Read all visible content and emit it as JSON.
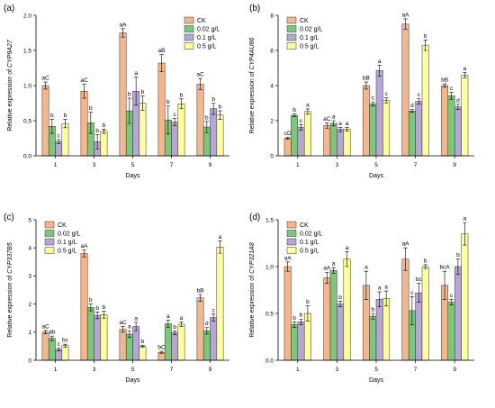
{
  "colors": {
    "CK": "#f7b58a",
    "0.02 g/L": "#7ac97a",
    "0.1 g/L": "#b6a6d8",
    "0.5 g/L": "#ffff99",
    "edge": "#333333"
  },
  "chart_data": [
    {
      "panel": "(a)",
      "type": "bar",
      "categories": [
        "1",
        "3",
        "5",
        "7",
        "9"
      ],
      "xlabel": "Days",
      "ylabel": "Relative expression of CYP9A27",
      "ylim": [
        0,
        2.0
      ],
      "yticks": [
        "0.0",
        "0.5",
        "1.0",
        "1.5",
        "2.0"
      ],
      "legend_position": "top-right",
      "series": [
        {
          "name": "CK",
          "values": [
            1.0,
            0.92,
            1.75,
            1.32,
            1.02
          ],
          "errors": [
            0.05,
            0.1,
            0.06,
            0.12,
            0.08
          ],
          "labels": [
            "aC",
            "aC",
            "aA",
            "aB",
            "aC"
          ]
        },
        {
          "name": "0.02 g/L",
          "values": [
            0.42,
            0.47,
            0.64,
            0.51,
            0.41
          ],
          "errors": [
            0.1,
            0.15,
            0.18,
            0.2,
            0.08
          ],
          "labels": [
            "b",
            "b",
            "b",
            "b",
            "b"
          ]
        },
        {
          "name": "0.1 g/L",
          "values": [
            0.2,
            0.2,
            0.92,
            0.48,
            0.67
          ],
          "errors": [
            0.03,
            0.1,
            0.2,
            0.05,
            0.08
          ],
          "labels": [
            "c",
            "b",
            "a",
            "c",
            "b"
          ]
        },
        {
          "name": "0.5 g/L",
          "values": [
            0.46,
            0.35,
            0.75,
            0.74,
            0.58
          ],
          "errors": [
            0.06,
            0.03,
            0.1,
            0.07,
            0.06
          ],
          "labels": [
            "b",
            "b",
            "b",
            "b",
            "b"
          ]
        }
      ]
    },
    {
      "panel": "(b)",
      "type": "bar",
      "categories": [
        "1",
        "3",
        "5",
        "7",
        "9"
      ],
      "xlabel": "Days",
      "ylabel": "Relative expression of CYP4AU86",
      "ylim": [
        0,
        8
      ],
      "yticks": [
        "0",
        "2",
        "4",
        "6",
        "8"
      ],
      "legend_position": "top-left",
      "series": [
        {
          "name": "CK",
          "values": [
            1.0,
            1.72,
            4.0,
            7.5,
            4.0
          ],
          "errors": [
            0.05,
            0.15,
            0.2,
            0.3,
            0.1
          ],
          "labels": [
            "cD",
            "aC",
            "bB",
            "aA",
            "bB"
          ]
        },
        {
          "name": "0.02 g/L",
          "values": [
            2.3,
            1.85,
            2.95,
            2.55,
            3.42
          ],
          "errors": [
            0.08,
            0.15,
            0.12,
            0.08,
            0.2
          ],
          "labels": [
            "b",
            "a",
            "c",
            "d",
            "c"
          ]
        },
        {
          "name": "0.1 g/L",
          "values": [
            1.62,
            1.5,
            4.85,
            3.1,
            2.78
          ],
          "errors": [
            0.15,
            0.12,
            0.3,
            0.15,
            0.15
          ],
          "labels": [
            "c",
            "a",
            "a",
            "c",
            "d"
          ]
        },
        {
          "name": "0.5 g/L",
          "values": [
            2.52,
            1.52,
            3.15,
            6.3,
            4.6
          ],
          "errors": [
            0.15,
            0.1,
            0.15,
            0.3,
            0.15
          ],
          "labels": [
            "a",
            "a",
            "c",
            "b",
            "a"
          ]
        }
      ]
    },
    {
      "panel": "(c)",
      "type": "bar",
      "categories": [
        "1",
        "3",
        "5",
        "7",
        "9"
      ],
      "xlabel": "Days",
      "ylabel": "Relative expression of CYP337B5",
      "ylim": [
        0,
        5
      ],
      "yticks": [
        "0",
        "1",
        "2",
        "3",
        "4",
        "5"
      ],
      "legend_position": "top-left",
      "series": [
        {
          "name": "CK",
          "values": [
            1.0,
            3.8,
            1.1,
            0.28,
            2.22
          ],
          "errors": [
            0.06,
            0.12,
            0.1,
            0.04,
            0.12
          ],
          "labels": [
            "aC",
            "aA",
            "aC",
            "bC",
            "bB"
          ]
        },
        {
          "name": "0.02 g/L",
          "values": [
            0.78,
            1.88,
            0.93,
            1.3,
            1.05
          ],
          "errors": [
            0.08,
            0.12,
            0.12,
            0.12,
            0.12
          ],
          "labels": [
            "ab",
            "b",
            "a",
            "a",
            "d"
          ]
        },
        {
          "name": "0.1 g/L",
          "values": [
            0.38,
            1.6,
            1.2,
            0.98,
            1.52
          ],
          "errors": [
            0.05,
            0.12,
            0.15,
            0.06,
            0.12
          ],
          "labels": [
            "c",
            "b",
            "a",
            "b",
            "c"
          ]
        },
        {
          "name": "0.5 g/L",
          "values": [
            0.52,
            1.62,
            0.5,
            1.28,
            4.03
          ],
          "errors": [
            0.05,
            0.12,
            0.03,
            0.08,
            0.22
          ],
          "labels": [
            "bc",
            "b",
            "b",
            "a",
            "a"
          ]
        }
      ]
    },
    {
      "panel": "(d)",
      "type": "bar",
      "categories": [
        "1",
        "3",
        "5",
        "7",
        "9"
      ],
      "xlabel": "Days",
      "ylabel": "Relative expression of CYP321A8",
      "ylim": [
        0,
        1.5
      ],
      "yticks": [
        "0.0",
        "0.5",
        "1.0",
        "1.5"
      ],
      "legend_position": "top-left",
      "series": [
        {
          "name": "CK",
          "values": [
            1.0,
            0.88,
            0.8,
            1.08,
            0.8
          ],
          "errors": [
            0.05,
            0.06,
            0.15,
            0.12,
            0.15
          ],
          "labels": [
            "aA",
            "aA",
            "a",
            "aA",
            "bcA"
          ]
        },
        {
          "name": "0.02 g/L",
          "values": [
            0.38,
            0.96,
            0.47,
            0.53,
            0.62
          ],
          "errors": [
            0.03,
            0.03,
            0.03,
            0.15,
            0.03
          ],
          "labels": [
            "b",
            "a",
            "b",
            "c",
            "c"
          ]
        },
        {
          "name": "0.1 g/L",
          "values": [
            0.41,
            0.6,
            0.65,
            0.72,
            1.0
          ],
          "errors": [
            0.03,
            0.03,
            0.08,
            0.1,
            0.08
          ],
          "labels": [
            "b",
            "b",
            "a",
            "bc",
            "b"
          ]
        },
        {
          "name": "0.5 g/L",
          "values": [
            0.5,
            1.08,
            0.66,
            1.0,
            1.35
          ],
          "errors": [
            0.08,
            0.08,
            0.08,
            0.02,
            0.12
          ],
          "labels": [
            "b",
            "a",
            "a",
            "b",
            "a"
          ]
        }
      ]
    }
  ]
}
